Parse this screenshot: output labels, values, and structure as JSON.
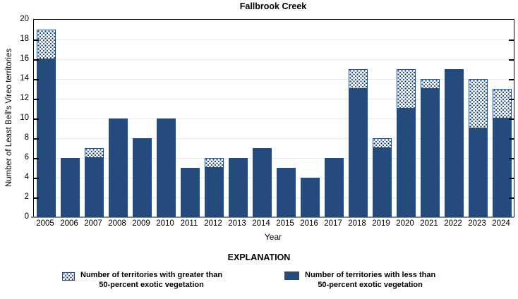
{
  "chart_data": {
    "type": "bar",
    "stacked": true,
    "title": "Fallbrook Creek",
    "xlabel": "Year",
    "ylabel": "Number of Least Bell's Vireo territories",
    "ylim": [
      0,
      20
    ],
    "ytick_step": 2,
    "grid": true,
    "categories": [
      "2005",
      "2006",
      "2007",
      "2008",
      "2009",
      "2010",
      "2011",
      "2012",
      "2013",
      "2014",
      "2015",
      "2016",
      "2017",
      "2018",
      "2019",
      "2020",
      "2021",
      "2022",
      "2023",
      "2024"
    ],
    "series": [
      {
        "name": "Number of territories with less than 50-percent exotic vegetation",
        "style": "solid",
        "values": [
          16,
          6,
          6,
          10,
          8,
          10,
          5,
          5,
          6,
          7,
          5,
          4,
          6,
          13,
          7,
          11,
          13,
          15,
          9,
          10
        ]
      },
      {
        "name": "Number of territories with greater than 50-percent exotic vegetation",
        "style": "dotted",
        "values": [
          3,
          0,
          1,
          0,
          0,
          0,
          0,
          1,
          0,
          0,
          0,
          0,
          0,
          2,
          1,
          4,
          1,
          0,
          5,
          3
        ]
      }
    ],
    "totals": [
      19,
      6,
      7,
      10,
      8,
      10,
      5,
      6,
      6,
      7,
      5,
      4,
      6,
      15,
      8,
      15,
      14,
      15,
      14,
      13
    ]
  },
  "legend": {
    "heading": "EXPLANATION",
    "items": [
      {
        "swatch": "dotted",
        "label_line1": "Number of territories with greater than",
        "label_line2": "50-percent exotic vegetation"
      },
      {
        "swatch": "solid",
        "label_line1": "Number of territories with less than",
        "label_line2": "50-percent exotic vegetation"
      }
    ]
  },
  "colors": {
    "bar_blue": "#254B7C",
    "grid_line": "#E8E8E8",
    "axis_gray": "#858585",
    "frame_black": "#000000"
  }
}
